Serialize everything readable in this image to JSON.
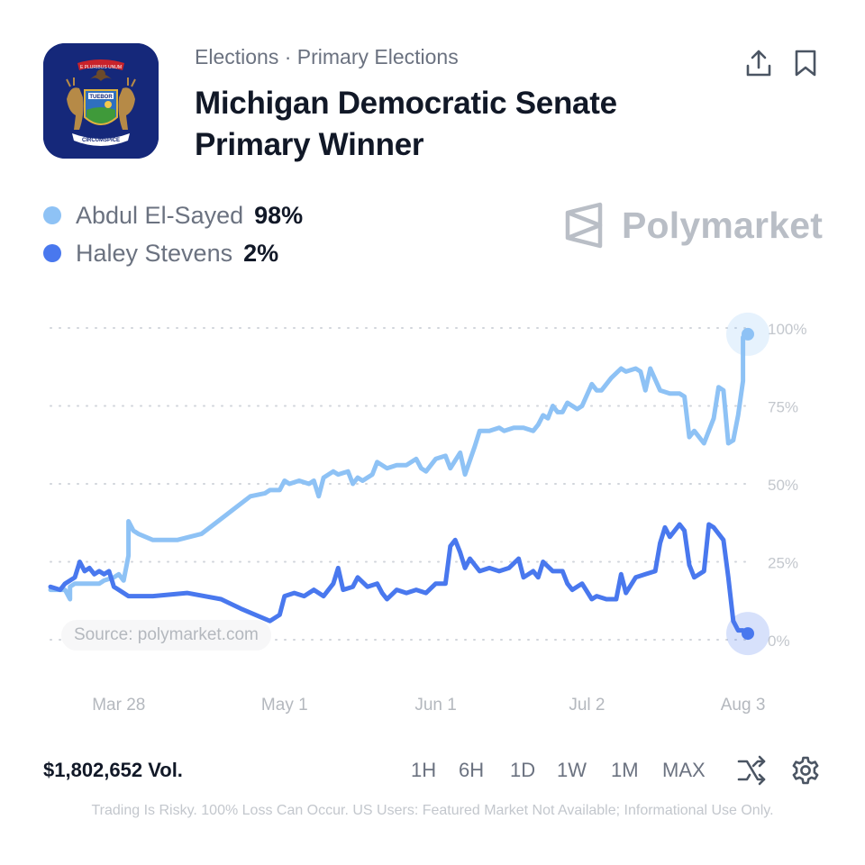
{
  "header": {
    "logo_icon": "michigan-state-flag-icon",
    "logo_lettering": [
      "E PLURIBUS UNUM",
      "TUEBOR",
      "CIRCUMSPICE"
    ],
    "breadcrumb": "Elections · Primary Elections",
    "title": "Michigan Democratic Senate Primary Winner",
    "share_icon": "share-icon",
    "bookmark_icon": "bookmark-icon"
  },
  "legend": [
    {
      "name": "Abdul El-Sayed",
      "value": "98%",
      "color": "#8ec2f5"
    },
    {
      "name": "Haley Stevens",
      "value": "2%",
      "color": "#4978ee"
    }
  ],
  "brand": {
    "name": "Polymarket",
    "icon": "polymarket-logo-icon"
  },
  "chart_data": {
    "type": "line",
    "x_start": "2025-03-14",
    "x_end": "2025-08-04",
    "x_ticks": [
      {
        "date": "2025-03-28",
        "label": "Mar 28"
      },
      {
        "date": "2025-05-01",
        "label": "May 1"
      },
      {
        "date": "2025-06-01",
        "label": "Jun 1"
      },
      {
        "date": "2025-07-02",
        "label": "Jul 2"
      },
      {
        "date": "2025-08-03",
        "label": "Aug 3"
      }
    ],
    "y_ticks": [
      {
        "value": 100,
        "label": "100%"
      },
      {
        "value": 75,
        "label": "75%"
      },
      {
        "value": 50,
        "label": "50%"
      },
      {
        "value": 25,
        "label": "25%"
      },
      {
        "value": 0,
        "label": "0%"
      }
    ],
    "ylim": [
      0,
      100
    ],
    "grid": "horizontal-dotted",
    "legend_position": "top-left",
    "series": [
      {
        "name": "Abdul El-Sayed",
        "color": "#8ec2f5",
        "points": [
          [
            "2025-03-14",
            16
          ],
          [
            "2025-03-15",
            16
          ],
          [
            "2025-03-17",
            16
          ],
          [
            "2025-03-18",
            13
          ],
          [
            "2025-03-18",
            17
          ],
          [
            "2025-03-19",
            18
          ],
          [
            "2025-03-22",
            18
          ],
          [
            "2025-03-24",
            18
          ],
          [
            "2025-03-25",
            19
          ],
          [
            "2025-03-27",
            20
          ],
          [
            "2025-03-28",
            21
          ],
          [
            "2025-03-29",
            19
          ],
          [
            "2025-03-30",
            27
          ],
          [
            "2025-03-30",
            38
          ],
          [
            "2025-03-31",
            35
          ],
          [
            "2025-04-01",
            34
          ],
          [
            "2025-04-04",
            32
          ],
          [
            "2025-04-09",
            32
          ],
          [
            "2025-04-14",
            34
          ],
          [
            "2025-04-19",
            40
          ],
          [
            "2025-04-24",
            46
          ],
          [
            "2025-04-27",
            47
          ],
          [
            "2025-04-28",
            48
          ],
          [
            "2025-04-30",
            48
          ],
          [
            "2025-05-01",
            51
          ],
          [
            "2025-05-02",
            50
          ],
          [
            "2025-05-04",
            51
          ],
          [
            "2025-05-06",
            50
          ],
          [
            "2025-05-07",
            51
          ],
          [
            "2025-05-08",
            46
          ],
          [
            "2025-05-09",
            52
          ],
          [
            "2025-05-11",
            54
          ],
          [
            "2025-05-12",
            53
          ],
          [
            "2025-05-14",
            54
          ],
          [
            "2025-05-15",
            50
          ],
          [
            "2025-05-16",
            52
          ],
          [
            "2025-05-17",
            51
          ],
          [
            "2025-05-19",
            53
          ],
          [
            "2025-05-20",
            57
          ],
          [
            "2025-05-22",
            55
          ],
          [
            "2025-05-24",
            56
          ],
          [
            "2025-05-26",
            56
          ],
          [
            "2025-05-28",
            58
          ],
          [
            "2025-05-29",
            55
          ],
          [
            "2025-05-30",
            54
          ],
          [
            "2025-06-01",
            58
          ],
          [
            "2025-06-03",
            59
          ],
          [
            "2025-06-04",
            55
          ],
          [
            "2025-06-06",
            60
          ],
          [
            "2025-06-07",
            53
          ],
          [
            "2025-06-09",
            62
          ],
          [
            "2025-06-10",
            67
          ],
          [
            "2025-06-12",
            67
          ],
          [
            "2025-06-14",
            68
          ],
          [
            "2025-06-15",
            67
          ],
          [
            "2025-06-17",
            68
          ],
          [
            "2025-06-19",
            68
          ],
          [
            "2025-06-21",
            67
          ],
          [
            "2025-06-22",
            69
          ],
          [
            "2025-06-23",
            72
          ],
          [
            "2025-06-24",
            71
          ],
          [
            "2025-06-25",
            75
          ],
          [
            "2025-06-26",
            73
          ],
          [
            "2025-06-27",
            73
          ],
          [
            "2025-06-28",
            76
          ],
          [
            "2025-06-30",
            74
          ],
          [
            "2025-07-01",
            75
          ],
          [
            "2025-07-03",
            82
          ],
          [
            "2025-07-04",
            80
          ],
          [
            "2025-07-05",
            80
          ],
          [
            "2025-07-07",
            84
          ],
          [
            "2025-07-09",
            87
          ],
          [
            "2025-07-10",
            86
          ],
          [
            "2025-07-12",
            87
          ],
          [
            "2025-07-13",
            86
          ],
          [
            "2025-07-14",
            80
          ],
          [
            "2025-07-15",
            87
          ],
          [
            "2025-07-17",
            80
          ],
          [
            "2025-07-19",
            79
          ],
          [
            "2025-07-21",
            79
          ],
          [
            "2025-07-22",
            78
          ],
          [
            "2025-07-23",
            65
          ],
          [
            "2025-07-24",
            67
          ],
          [
            "2025-07-26",
            63
          ],
          [
            "2025-07-28",
            71
          ],
          [
            "2025-07-29",
            81
          ],
          [
            "2025-07-30",
            80
          ],
          [
            "2025-07-31",
            63
          ],
          [
            "2025-08-01",
            64
          ],
          [
            "2025-08-02",
            72
          ],
          [
            "2025-08-03",
            83
          ],
          [
            "2025-08-03",
            97
          ],
          [
            "2025-08-04",
            98
          ]
        ]
      },
      {
        "name": "Haley Stevens",
        "color": "#4978ee",
        "points": [
          [
            "2025-03-14",
            17
          ],
          [
            "2025-03-16",
            16
          ],
          [
            "2025-03-17",
            18
          ],
          [
            "2025-03-18",
            19
          ],
          [
            "2025-03-19",
            20
          ],
          [
            "2025-03-20",
            25
          ],
          [
            "2025-03-21",
            22
          ],
          [
            "2025-03-22",
            23
          ],
          [
            "2025-03-23",
            21
          ],
          [
            "2025-03-24",
            22
          ],
          [
            "2025-03-25",
            21
          ],
          [
            "2025-03-26",
            22
          ],
          [
            "2025-03-27",
            17
          ],
          [
            "2025-03-28",
            16
          ],
          [
            "2025-03-29",
            15
          ],
          [
            "2025-03-30",
            14
          ],
          [
            "2025-04-04",
            14
          ],
          [
            "2025-04-11",
            15
          ],
          [
            "2025-04-18",
            13
          ],
          [
            "2025-04-22",
            10
          ],
          [
            "2025-04-25",
            8
          ],
          [
            "2025-04-28",
            6
          ],
          [
            "2025-04-30",
            8
          ],
          [
            "2025-05-01",
            14
          ],
          [
            "2025-05-03",
            15
          ],
          [
            "2025-05-05",
            14
          ],
          [
            "2025-05-07",
            16
          ],
          [
            "2025-05-09",
            14
          ],
          [
            "2025-05-11",
            18
          ],
          [
            "2025-05-12",
            23
          ],
          [
            "2025-05-13",
            16
          ],
          [
            "2025-05-15",
            17
          ],
          [
            "2025-05-16",
            20
          ],
          [
            "2025-05-18",
            17
          ],
          [
            "2025-05-20",
            18
          ],
          [
            "2025-05-21",
            15
          ],
          [
            "2025-05-22",
            13
          ],
          [
            "2025-05-24",
            16
          ],
          [
            "2025-05-26",
            15
          ],
          [
            "2025-05-28",
            16
          ],
          [
            "2025-05-30",
            15
          ],
          [
            "2025-06-01",
            18
          ],
          [
            "2025-06-03",
            18
          ],
          [
            "2025-06-04",
            30
          ],
          [
            "2025-06-05",
            32
          ],
          [
            "2025-06-06",
            28
          ],
          [
            "2025-06-07",
            23
          ],
          [
            "2025-06-08",
            26
          ],
          [
            "2025-06-10",
            22
          ],
          [
            "2025-06-12",
            23
          ],
          [
            "2025-06-14",
            22
          ],
          [
            "2025-06-16",
            23
          ],
          [
            "2025-06-18",
            26
          ],
          [
            "2025-06-19",
            20
          ],
          [
            "2025-06-21",
            22
          ],
          [
            "2025-06-22",
            20
          ],
          [
            "2025-06-23",
            25
          ],
          [
            "2025-06-25",
            22
          ],
          [
            "2025-06-27",
            22
          ],
          [
            "2025-06-28",
            18
          ],
          [
            "2025-06-29",
            16
          ],
          [
            "2025-07-01",
            18
          ],
          [
            "2025-07-03",
            13
          ],
          [
            "2025-07-04",
            14
          ],
          [
            "2025-07-06",
            13
          ],
          [
            "2025-07-08",
            13
          ],
          [
            "2025-07-09",
            21
          ],
          [
            "2025-07-10",
            15
          ],
          [
            "2025-07-12",
            20
          ],
          [
            "2025-07-14",
            21
          ],
          [
            "2025-07-16",
            22
          ],
          [
            "2025-07-17",
            31
          ],
          [
            "2025-07-18",
            36
          ],
          [
            "2025-07-19",
            33
          ],
          [
            "2025-07-21",
            37
          ],
          [
            "2025-07-22",
            35
          ],
          [
            "2025-07-23",
            24
          ],
          [
            "2025-07-24",
            20
          ],
          [
            "2025-07-26",
            22
          ],
          [
            "2025-07-27",
            37
          ],
          [
            "2025-07-28",
            36
          ],
          [
            "2025-07-30",
            32
          ],
          [
            "2025-07-31",
            20
          ],
          [
            "2025-08-01",
            6
          ],
          [
            "2025-08-02",
            3
          ],
          [
            "2025-08-03",
            3
          ],
          [
            "2025-08-04",
            2
          ]
        ]
      }
    ]
  },
  "source_label": "Source: polymarket.com",
  "footer": {
    "volume": "$1,802,652 Vol.",
    "ranges": [
      "1H",
      "6H",
      "1D",
      "1W",
      "1M",
      "MAX"
    ],
    "shuffle_icon": "shuffle-icon",
    "settings_icon": "gear-icon",
    "disclaimer": "Trading Is Risky. 100% Loss Can Occur. US Users: Featured Market Not Available; Informational Use Only."
  }
}
